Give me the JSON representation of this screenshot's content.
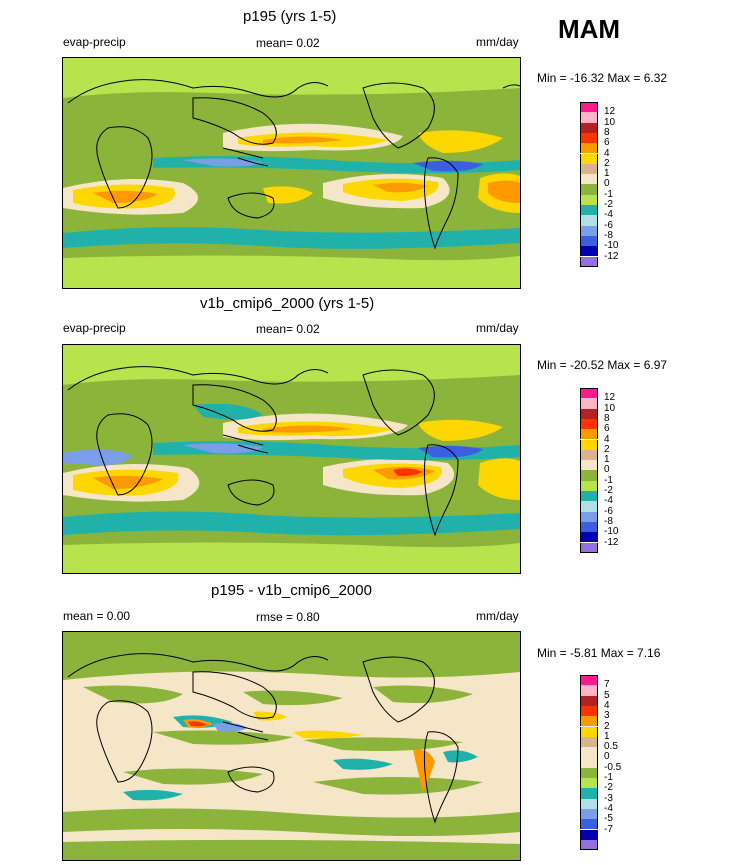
{
  "season": "MAM",
  "panels": [
    {
      "title": "p195 (yrs 1-5)",
      "left": "evap-precip",
      "center": "mean=  0.02",
      "right": "mm/day",
      "minmax": "Min = -16.32 Max =   6.32",
      "legend": [
        {
          "label": "12",
          "color": "#ff1a8c"
        },
        {
          "label": "10",
          "color": "#ffb3c6"
        },
        {
          "label": "8",
          "color": "#b22222"
        },
        {
          "label": "6",
          "color": "#ff3300"
        },
        {
          "label": "4",
          "color": "#ff9900"
        },
        {
          "label": "2",
          "color": "#ffd700"
        },
        {
          "label": "1",
          "color": "#d9b38c"
        },
        {
          "label": "0",
          "color": "#f5e6c8"
        },
        {
          "label": "-1",
          "color": "#8cb33a"
        },
        {
          "label": "-2",
          "color": "#b7e34c"
        },
        {
          "label": "-4",
          "color": "#20b2aa"
        },
        {
          "label": "-6",
          "color": "#b0e0e6"
        },
        {
          "label": "-8",
          "color": "#7b9ee8"
        },
        {
          "label": "-10",
          "color": "#3a5fe0"
        },
        {
          "label": "-12",
          "color": "#0000b3"
        },
        {
          "label": "",
          "color": "#9370db"
        }
      ]
    },
    {
      "title": "v1b_cmip6_2000 (yrs 1-5)",
      "left": "evap-precip",
      "center": "mean=  0.02",
      "right": "mm/day",
      "minmax": "Min = -20.52 Max =   6.97",
      "legend": [
        {
          "label": "12",
          "color": "#ff1a8c"
        },
        {
          "label": "10",
          "color": "#ffb3c6"
        },
        {
          "label": "8",
          "color": "#b22222"
        },
        {
          "label": "6",
          "color": "#ff3300"
        },
        {
          "label": "4",
          "color": "#ff9900"
        },
        {
          "label": "2",
          "color": "#ffd700"
        },
        {
          "label": "1",
          "color": "#d9b38c"
        },
        {
          "label": "0",
          "color": "#f5e6c8"
        },
        {
          "label": "-1",
          "color": "#8cb33a"
        },
        {
          "label": "-2",
          "color": "#b7e34c"
        },
        {
          "label": "-4",
          "color": "#20b2aa"
        },
        {
          "label": "-6",
          "color": "#b0e0e6"
        },
        {
          "label": "-8",
          "color": "#7b9ee8"
        },
        {
          "label": "-10",
          "color": "#3a5fe0"
        },
        {
          "label": "-12",
          "color": "#0000b3"
        },
        {
          "label": "",
          "color": "#9370db"
        }
      ]
    },
    {
      "title": "p195 - v1b_cmip6_2000",
      "left": "mean =   0.00",
      "center": "rmse =   0.80",
      "right": "mm/day",
      "minmax": "Min =  -5.81 Max =   7.16",
      "legend": [
        {
          "label": "7",
          "color": "#ff1a8c"
        },
        {
          "label": "5",
          "color": "#ffb3c6"
        },
        {
          "label": "4",
          "color": "#b22222"
        },
        {
          "label": "3",
          "color": "#ff3300"
        },
        {
          "label": "2",
          "color": "#ff9900"
        },
        {
          "label": "1",
          "color": "#ffd700"
        },
        {
          "label": "0.5",
          "color": "#d9b38c"
        },
        {
          "label": "0",
          "color": "#f5e6c8"
        },
        {
          "label": "-0.5",
          "color": "#f5e6c8"
        },
        {
          "label": "-1",
          "color": "#8cb33a"
        },
        {
          "label": "-2",
          "color": "#b7e34c"
        },
        {
          "label": "-3",
          "color": "#20b2aa"
        },
        {
          "label": "-4",
          "color": "#b0e0e6"
        },
        {
          "label": "-5",
          "color": "#7b9ee8"
        },
        {
          "label": "-7",
          "color": "#3a5fe0"
        },
        {
          "label": "",
          "color": "#0000b3"
        },
        {
          "label": "",
          "color": "#9370db"
        }
      ]
    }
  ]
}
